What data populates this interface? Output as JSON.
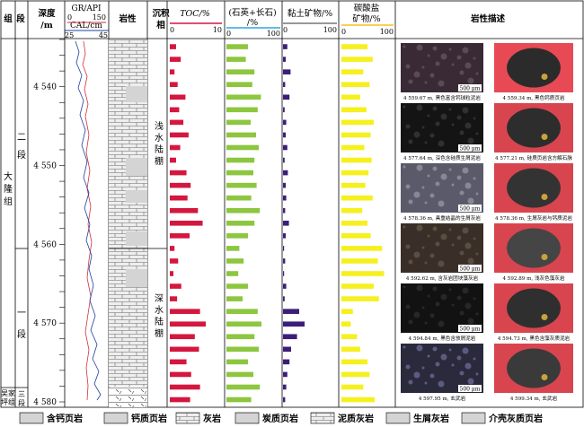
{
  "headers": {
    "group": "组",
    "stage": "段",
    "depth": "深度\n/m",
    "log_gr": "GR/API",
    "log_gr_min": "0",
    "log_gr_max": "150",
    "log_cal": "CAL/cm",
    "log_cal_min": "25",
    "log_cal_max": "45",
    "lithology": "岩性",
    "facies": "沉积\n相",
    "toc": "TOC/%",
    "toc_min": "0",
    "toc_max": "10",
    "quartz": "(石英+长石)\n/%",
    "quartz_min": "0",
    "quartz_max": "100",
    "clay": "黏土矿物/%",
    "clay_min": "0",
    "clay_max": "100",
    "carbonate": "碳酸盐\n矿物/%",
    "carbonate_min": "0",
    "carbonate_max": "100",
    "description": "岩性描述"
  },
  "strata": {
    "group_name": "大隆组",
    "wujiaping": "吴家坪组",
    "stage_2": "二段",
    "stage_1": "一段",
    "stage_3": "三段",
    "facies_shallow": "浅水陆棚",
    "facies_deep": "深水陆棚"
  },
  "depth_ticks": [
    "4 540",
    "4 550",
    "4 560",
    "4 570",
    "4 580"
  ],
  "colors": {
    "toc": "#d4173f",
    "quartz": "#8dc63f",
    "clay": "#3b1e7a",
    "carbonate": "#f5f01e",
    "gr": "#d0303a",
    "cal": "#1f3f9f"
  },
  "chart_data": {
    "type": "bar",
    "depth_range": [
      4534,
      4580
    ],
    "depths": [
      4534.6,
      4536.2,
      4537.8,
      4539.4,
      4541.0,
      4542.6,
      4544.2,
      4545.8,
      4547.4,
      4549.0,
      4550.6,
      4552.2,
      4553.8,
      4555.4,
      4557.0,
      4558.6,
      4560.2,
      4561.8,
      4563.4,
      4565.0,
      4566.6,
      4568.2,
      4569.8,
      4571.4,
      4573.0,
      4574.6,
      4576.2,
      4577.8,
      4579.4
    ],
    "series": [
      {
        "name": "TOC/%",
        "xlim": [
          0,
          10
        ],
        "values": [
          1.2,
          2.1,
          0.9,
          1.5,
          3.0,
          1.8,
          2.6,
          3.6,
          2.0,
          1.2,
          3.2,
          4.0,
          3.4,
          5.4,
          6.3,
          3.8,
          0.9,
          1.6,
          0.7,
          2.2,
          1.4,
          5.8,
          6.9,
          4.8,
          5.6,
          3.2,
          4.1,
          5.8,
          3.9
        ]
      },
      {
        "name": "(石英+长石)/%",
        "xlim": [
          0,
          100
        ],
        "values": [
          40,
          36,
          52,
          48,
          64,
          58,
          45,
          55,
          60,
          52,
          50,
          56,
          46,
          62,
          52,
          40,
          24,
          32,
          22,
          40,
          30,
          58,
          65,
          52,
          60,
          40,
          50,
          62,
          46
        ]
      },
      {
        "name": "黏土矿物/%",
        "xlim": [
          0,
          100
        ],
        "values": [
          8,
          5,
          14,
          4,
          12,
          3,
          6,
          5,
          8,
          3,
          9,
          5,
          6,
          4,
          11,
          5,
          2,
          4,
          2,
          6,
          3,
          30,
          40,
          26,
          15,
          12,
          8,
          6,
          4
        ]
      },
      {
        "name": "碳酸盐矿物/%",
        "xlim": [
          0,
          100
        ],
        "values": [
          50,
          60,
          42,
          54,
          36,
          48,
          62,
          56,
          44,
          58,
          52,
          46,
          60,
          40,
          50,
          56,
          78,
          70,
          82,
          62,
          72,
          22,
          18,
          30,
          36,
          50,
          54,
          42,
          64
        ]
      }
    ]
  },
  "photos": [
    {
      "caption": "4 559.67 m, 黑色富含钙球粒泥岩",
      "scale": "500 μm"
    },
    {
      "caption": "4 559.34 m, 黑色钙质页岩",
      "scale": ""
    },
    {
      "caption": "4 577.64 m, 深色含硅质生屑泥岩",
      "scale": "500 μm"
    },
    {
      "caption": "4 577.21 m, 硅质页岩含方解石脉",
      "scale": ""
    },
    {
      "caption": "4 578.36 m, 具重结晶的生屑灰岩",
      "scale": "500 μm"
    },
    {
      "caption": "4 578.36 m, 生屑灰岩与钙质泥岩",
      "scale": ""
    },
    {
      "caption": "4 592.62 m, 含灰岩团块藻灰岩",
      "scale": "500 μm"
    },
    {
      "caption": "4 592.89 m, 浅灰色藻灰岩",
      "scale": ""
    },
    {
      "caption": "4 594.84 m, 黑色含放屑泥岩",
      "scale": "500 μm"
    },
    {
      "caption": "4 594.73 m, 黑色含藻灰质泥岩",
      "scale": ""
    },
    {
      "caption": "4 597.95 m, 玄武岩",
      "scale": "500 μm"
    },
    {
      "caption": "4 599.34 m, 玄武岩",
      "scale": ""
    }
  ],
  "legend": [
    {
      "label": "含钙页岩",
      "pattern": "calc-shale"
    },
    {
      "label": "钙质页岩",
      "pattern": "calcareous-shale"
    },
    {
      "label": "灰岩",
      "pattern": "limestone"
    },
    {
      "label": "炭质页岩",
      "pattern": "carbon-shale"
    },
    {
      "label": "泥质灰岩",
      "pattern": "argillaceous-limestone"
    },
    {
      "label": "生屑灰岩",
      "pattern": "bioclastic-limestone"
    },
    {
      "label": "介壳灰质页岩",
      "pattern": "shell-shale"
    }
  ]
}
